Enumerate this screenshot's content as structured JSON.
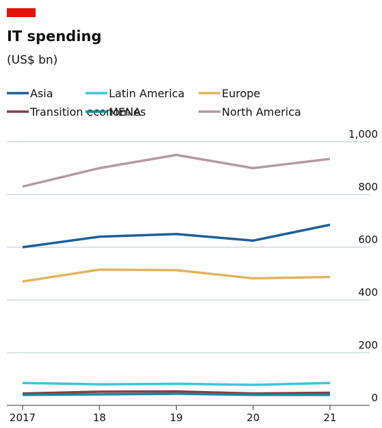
{
  "chart_data": {
    "type": "line",
    "title": "IT spending",
    "subtitle": "(US$ bn)",
    "categories": [
      "2017",
      "18",
      "19",
      "20",
      "21"
    ],
    "series": [
      {
        "name": "Asia",
        "color": "#1d5f99",
        "values": [
          600,
          640,
          650,
          625,
          685
        ]
      },
      {
        "name": "Latin America",
        "color": "#3fc4dc",
        "values": [
          85,
          80,
          82,
          78,
          85
        ]
      },
      {
        "name": "Europe",
        "color": "#e2b35c",
        "values": [
          470,
          515,
          513,
          482,
          487
        ]
      },
      {
        "name": "Transition economies",
        "color": "#8c3a48",
        "values": [
          45,
          52,
          53,
          45,
          48
        ]
      },
      {
        "name": "MENA",
        "color": "#138b9a",
        "values": [
          40,
          42,
          44,
          40,
          40
        ]
      },
      {
        "name": "North America",
        "color": "#b39aa3",
        "values": [
          830,
          900,
          950,
          900,
          935
        ]
      }
    ],
    "ylim": [
      0,
      1000
    ],
    "yticks": [
      0,
      200,
      400,
      600,
      800,
      {
        "value": 1000,
        "label": "1,000"
      }
    ],
    "grid": true
  }
}
